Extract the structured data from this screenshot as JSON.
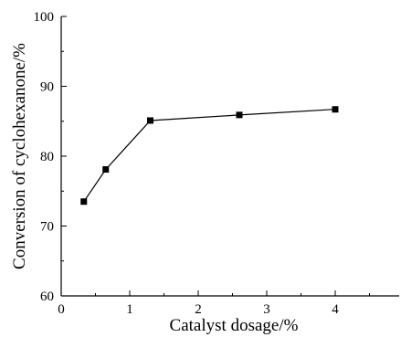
{
  "chart_data": {
    "type": "line",
    "title": "",
    "xlabel": "Catalyst dosage/%",
    "ylabel": "Conversion of cyclohexanone/%",
    "xlim": [
      0,
      5
    ],
    "ylim": [
      60,
      100
    ],
    "x_ticks": [
      0,
      1,
      2,
      3,
      4
    ],
    "y_ticks": [
      60,
      70,
      80,
      90,
      100
    ],
    "grid": false,
    "legend": "none",
    "marker": "square",
    "color": "#000000",
    "series": [
      {
        "x": [
          0.33,
          0.65,
          1.3,
          2.6,
          4.0
        ],
        "y": [
          73.5,
          78.1,
          85.1,
          85.9,
          86.7
        ]
      }
    ]
  }
}
